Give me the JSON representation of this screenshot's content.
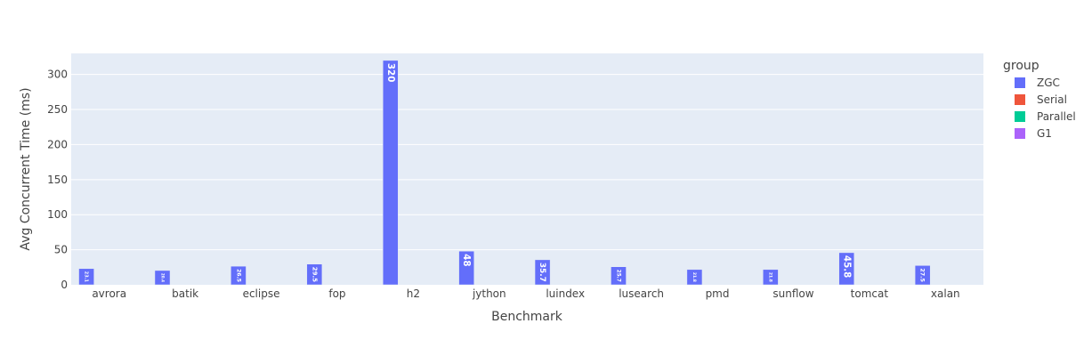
{
  "chart_data": {
    "type": "bar",
    "barmode": "group",
    "xlabel": "Benchmark",
    "ylabel": "Avg Concurrent Time (ms)",
    "ylim": [
      0,
      330
    ],
    "yticks": [
      0,
      50,
      100,
      150,
      200,
      250,
      300
    ],
    "grid": true,
    "legend": {
      "title": "group",
      "placement": "right"
    },
    "categories": [
      "avrora",
      "batik",
      "eclipse",
      "fop",
      "h2",
      "jython",
      "luindex",
      "lusearch",
      "pmd",
      "sunflow",
      "tomcat",
      "xalan"
    ],
    "series": [
      {
        "name": "ZGC",
        "color": "#636efa",
        "values": [
          23.1,
          20.4,
          26.5,
          29.5,
          320,
          48,
          35.7,
          25.7,
          21.8,
          21.8,
          45.8,
          27.5
        ],
        "labels": [
          "23.1",
          "20.4",
          "26.5",
          "29.5",
          "320",
          "48",
          "35.7",
          "25.7",
          "21.8",
          "21.8",
          "45.8",
          "27.5"
        ]
      },
      {
        "name": "Serial",
        "color": "#EF553B",
        "values": [
          0,
          0,
          0,
          0,
          0,
          0,
          0,
          0,
          0,
          0,
          0,
          0
        ]
      },
      {
        "name": "Parallel",
        "color": "#00cc96",
        "values": [
          0,
          0,
          0,
          0,
          0,
          0,
          0,
          0,
          0,
          0,
          0,
          0
        ]
      },
      {
        "name": "G1",
        "color": "#ab63fa",
        "values": [
          0,
          0,
          0,
          0,
          0,
          0,
          0,
          0,
          0,
          0,
          0,
          0
        ]
      }
    ]
  }
}
